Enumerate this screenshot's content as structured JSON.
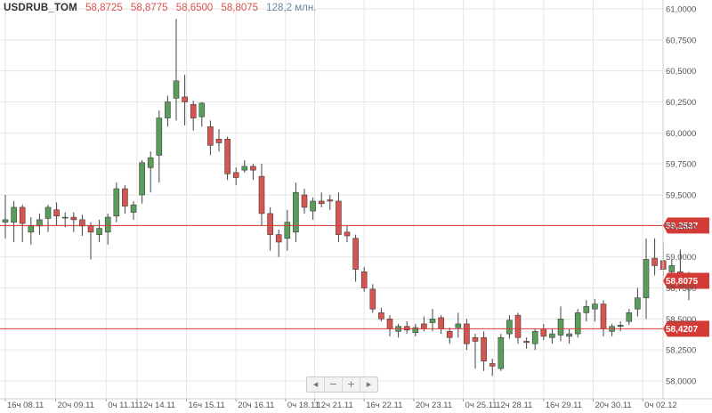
{
  "header": {
    "symbol": "USDRUB_TOM",
    "open": "58,8725",
    "high": "58,8775",
    "low": "58,6500",
    "close": "58,8075",
    "volume": "128,2 млн."
  },
  "navigator": {
    "prev": "◂",
    "minus": "−",
    "plus": "+",
    "next": "▸"
  },
  "colors": {
    "up": "#5a9c5a",
    "down": "#d9534f",
    "level_line": "#d43a36",
    "tag_bg": "#d43a36",
    "grid": "#e6e6e6"
  },
  "chart_data": {
    "type": "candlestick",
    "ylim": [
      57.95,
      61.05
    ],
    "y_ticks": [
      "61,0000",
      "60,7500",
      "60,5000",
      "60,2500",
      "60,0000",
      "59,7500",
      "59,5000",
      "59,2500",
      "59,0000",
      "58,7500",
      "58,5000",
      "58,2500",
      "58,0000"
    ],
    "y_tick_values": [
      61.0,
      60.75,
      60.5,
      60.25,
      60.0,
      59.75,
      59.5,
      59.25,
      59.0,
      58.75,
      58.5,
      58.25,
      58.0
    ],
    "x_tick_labels": [
      "16ч 08.11",
      "20ч 09.11",
      "0ч 11.11",
      "12ч 14.11",
      "16ч 15.11",
      "20ч 16.11",
      "0ч 18.11",
      "12ч 21.11",
      "16ч 22.11",
      "20ч 23.11",
      "0ч 25.11",
      "12ч 28.11",
      "16ч 29.11",
      "20ч 30.11",
      "0ч 02.12"
    ],
    "x_tick_index": [
      0,
      5.9,
      11.8,
      15.4,
      21.2,
      27.0,
      32.8,
      36.2,
      42.0,
      47.8,
      53.6,
      57.2,
      63.0,
      68.8,
      74.6
    ],
    "levels": [
      {
        "value": 59.2537,
        "label": "59,2537",
        "style": "line"
      },
      {
        "value": 58.8075,
        "label": "58,8075",
        "style": "tag"
      },
      {
        "value": 58.4207,
        "label": "58,4207",
        "style": "line"
      }
    ],
    "candles": [
      {
        "o": 59.28,
        "h": 59.5,
        "l": 59.15,
        "c": 59.3
      },
      {
        "o": 59.28,
        "h": 59.45,
        "l": 59.12,
        "c": 59.4
      },
      {
        "o": 59.4,
        "h": 59.42,
        "l": 59.12,
        "c": 59.27
      },
      {
        "o": 59.2,
        "h": 59.32,
        "l": 59.1,
        "c": 59.25
      },
      {
        "o": 59.25,
        "h": 59.35,
        "l": 59.18,
        "c": 59.3
      },
      {
        "o": 59.31,
        "h": 59.42,
        "l": 59.2,
        "c": 59.4
      },
      {
        "o": 59.38,
        "h": 59.44,
        "l": 59.25,
        "c": 59.33
      },
      {
        "o": 59.32,
        "h": 59.36,
        "l": 59.24,
        "c": 59.32
      },
      {
        "o": 59.32,
        "h": 59.36,
        "l": 59.2,
        "c": 59.3
      },
      {
        "o": 59.3,
        "h": 59.34,
        "l": 59.17,
        "c": 59.25
      },
      {
        "o": 59.25,
        "h": 59.28,
        "l": 58.98,
        "c": 59.2
      },
      {
        "o": 59.18,
        "h": 59.3,
        "l": 59.12,
        "c": 59.23
      },
      {
        "o": 59.2,
        "h": 59.35,
        "l": 59.1,
        "c": 59.32
      },
      {
        "o": 59.33,
        "h": 59.6,
        "l": 59.28,
        "c": 59.55
      },
      {
        "o": 59.55,
        "h": 59.58,
        "l": 59.35,
        "c": 59.41
      },
      {
        "o": 59.36,
        "h": 59.45,
        "l": 59.3,
        "c": 59.42
      },
      {
        "o": 59.5,
        "h": 59.78,
        "l": 59.43,
        "c": 59.76
      },
      {
        "o": 59.72,
        "h": 59.85,
        "l": 59.52,
        "c": 59.8
      },
      {
        "o": 59.82,
        "h": 60.18,
        "l": 59.6,
        "c": 60.12
      },
      {
        "o": 60.12,
        "h": 60.3,
        "l": 60.05,
        "c": 60.25
      },
      {
        "o": 60.28,
        "h": 60.92,
        "l": 60.1,
        "c": 60.42
      },
      {
        "o": 60.29,
        "h": 60.47,
        "l": 60.06,
        "c": 60.25
      },
      {
        "o": 60.23,
        "h": 60.26,
        "l": 60.02,
        "c": 60.12
      },
      {
        "o": 60.13,
        "h": 60.25,
        "l": 60.05,
        "c": 60.24
      },
      {
        "o": 60.05,
        "h": 60.1,
        "l": 59.82,
        "c": 59.9
      },
      {
        "o": 59.95,
        "h": 60.03,
        "l": 59.85,
        "c": 59.92
      },
      {
        "o": 59.95,
        "h": 59.97,
        "l": 59.62,
        "c": 59.67
      },
      {
        "o": 59.68,
        "h": 59.72,
        "l": 59.58,
        "c": 59.64
      },
      {
        "o": 59.7,
        "h": 59.78,
        "l": 59.68,
        "c": 59.73
      },
      {
        "o": 59.73,
        "h": 59.75,
        "l": 59.62,
        "c": 59.7
      },
      {
        "o": 59.65,
        "h": 59.75,
        "l": 59.25,
        "c": 59.35
      },
      {
        "o": 59.35,
        "h": 59.4,
        "l": 59.05,
        "c": 59.18
      },
      {
        "o": 59.18,
        "h": 59.22,
        "l": 59.0,
        "c": 59.12
      },
      {
        "o": 59.15,
        "h": 59.38,
        "l": 59.05,
        "c": 59.28
      },
      {
        "o": 59.2,
        "h": 59.6,
        "l": 59.12,
        "c": 59.52
      },
      {
        "o": 59.5,
        "h": 59.55,
        "l": 59.35,
        "c": 59.4
      },
      {
        "o": 59.37,
        "h": 59.48,
        "l": 59.3,
        "c": 59.45
      },
      {
        "o": 59.45,
        "h": 59.52,
        "l": 59.4,
        "c": 59.43
      },
      {
        "o": 59.46,
        "h": 59.5,
        "l": 59.38,
        "c": 59.45
      },
      {
        "o": 59.45,
        "h": 59.52,
        "l": 59.12,
        "c": 59.18
      },
      {
        "o": 59.2,
        "h": 59.25,
        "l": 59.12,
        "c": 59.17
      },
      {
        "o": 59.15,
        "h": 59.18,
        "l": 58.8,
        "c": 58.9
      },
      {
        "o": 58.88,
        "h": 58.92,
        "l": 58.72,
        "c": 58.75
      },
      {
        "o": 58.74,
        "h": 58.78,
        "l": 58.55,
        "c": 58.58
      },
      {
        "o": 58.55,
        "h": 58.59,
        "l": 58.48,
        "c": 58.5
      },
      {
        "o": 58.5,
        "h": 58.53,
        "l": 58.36,
        "c": 58.42
      },
      {
        "o": 58.4,
        "h": 58.46,
        "l": 58.35,
        "c": 58.44
      },
      {
        "o": 58.44,
        "h": 58.48,
        "l": 58.38,
        "c": 58.41
      },
      {
        "o": 58.39,
        "h": 58.46,
        "l": 58.36,
        "c": 58.43
      },
      {
        "o": 58.46,
        "h": 58.52,
        "l": 58.4,
        "c": 58.42
      },
      {
        "o": 58.47,
        "h": 58.58,
        "l": 58.4,
        "c": 58.5
      },
      {
        "o": 58.51,
        "h": 58.53,
        "l": 58.38,
        "c": 58.42
      },
      {
        "o": 58.4,
        "h": 58.43,
        "l": 58.3,
        "c": 58.35
      },
      {
        "o": 58.43,
        "h": 58.55,
        "l": 58.35,
        "c": 58.46
      },
      {
        "o": 58.46,
        "h": 58.5,
        "l": 58.25,
        "c": 58.3
      },
      {
        "o": 58.35,
        "h": 58.38,
        "l": 58.1,
        "c": 58.32
      },
      {
        "o": 58.35,
        "h": 58.4,
        "l": 58.08,
        "c": 58.16
      },
      {
        "o": 58.14,
        "h": 58.18,
        "l": 58.04,
        "c": 58.12
      },
      {
        "o": 58.1,
        "h": 58.38,
        "l": 58.08,
        "c": 58.35
      },
      {
        "o": 58.38,
        "h": 58.53,
        "l": 58.34,
        "c": 58.49
      },
      {
        "o": 58.53,
        "h": 58.55,
        "l": 58.3,
        "c": 58.35
      },
      {
        "o": 58.32,
        "h": 58.35,
        "l": 58.26,
        "c": 58.31
      },
      {
        "o": 58.3,
        "h": 58.42,
        "l": 58.25,
        "c": 58.4
      },
      {
        "o": 58.42,
        "h": 58.46,
        "l": 58.33,
        "c": 58.36
      },
      {
        "o": 58.35,
        "h": 58.42,
        "l": 58.3,
        "c": 58.38
      },
      {
        "o": 58.37,
        "h": 58.6,
        "l": 58.32,
        "c": 58.5
      },
      {
        "o": 58.36,
        "h": 58.42,
        "l": 58.3,
        "c": 58.38
      },
      {
        "o": 58.38,
        "h": 58.58,
        "l": 58.35,
        "c": 58.55
      },
      {
        "o": 58.55,
        "h": 58.65,
        "l": 58.48,
        "c": 58.6
      },
      {
        "o": 58.58,
        "h": 58.66,
        "l": 58.48,
        "c": 58.62
      },
      {
        "o": 58.62,
        "h": 58.65,
        "l": 58.36,
        "c": 58.42
      },
      {
        "o": 58.4,
        "h": 58.46,
        "l": 58.36,
        "c": 58.44
      },
      {
        "o": 58.44,
        "h": 58.48,
        "l": 58.4,
        "c": 58.45
      },
      {
        "o": 58.48,
        "h": 58.58,
        "l": 58.45,
        "c": 58.55
      },
      {
        "o": 58.58,
        "h": 58.75,
        "l": 58.52,
        "c": 58.67
      },
      {
        "o": 58.67,
        "h": 59.15,
        "l": 58.5,
        "c": 58.98
      },
      {
        "o": 58.99,
        "h": 59.15,
        "l": 58.85,
        "c": 58.93
      },
      {
        "o": 58.97,
        "h": 59.12,
        "l": 58.85,
        "c": 58.9
      },
      {
        "o": 58.88,
        "h": 58.98,
        "l": 58.8,
        "c": 58.93
      },
      {
        "o": 58.88,
        "h": 59.06,
        "l": 58.76,
        "c": 58.85
      },
      {
        "o": 58.87,
        "h": 58.88,
        "l": 58.65,
        "c": 58.81
      }
    ]
  }
}
